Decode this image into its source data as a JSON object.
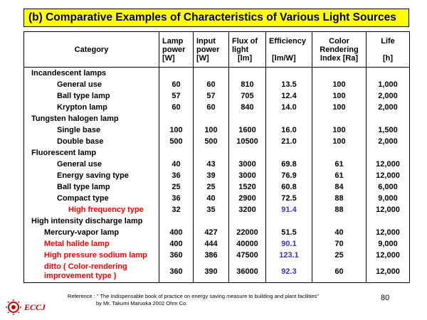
{
  "title": "(b) Comparative Examples of Characteristics of Various Light Sources",
  "headers": {
    "category": "Category",
    "lamp_power": [
      "Lamp",
      "power",
      "[W]"
    ],
    "input_power": [
      "Input",
      "power",
      "[W]"
    ],
    "flux": [
      "Flux of",
      "light",
      "[lm]"
    ],
    "efficiency": [
      "Efficiency",
      "[lm/W]"
    ],
    "color_rendering": [
      "Color",
      "Rendering",
      "Index [Ra]"
    ],
    "life": [
      "Life",
      "[h]"
    ]
  },
  "groups": [
    {
      "name": "Incandescent lamps",
      "rows": [
        {
          "name": "General use",
          "lamp": "60",
          "input": "60",
          "flux": "810",
          "eff": "13.5",
          "cri": "100",
          "life": "1,000"
        },
        {
          "name": "Ball type lamp",
          "lamp": "57",
          "input": "57",
          "flux": "705",
          "eff": "12.4",
          "cri": "100",
          "life": "2,000"
        },
        {
          "name": "Krypton lamp",
          "lamp": "60",
          "input": "60",
          "flux": "840",
          "eff": "14.0",
          "cri": "100",
          "life": "2,000"
        }
      ]
    },
    {
      "name": "Tungsten halogen lamp",
      "rows": [
        {
          "name": "Single base",
          "lamp": "100",
          "input": "100",
          "flux": "1600",
          "eff": "16.0",
          "cri": "100",
          "life": "1,500"
        },
        {
          "name": "Double base",
          "lamp": "500",
          "input": "500",
          "flux": "10500",
          "eff": "21.0",
          "cri": "100",
          "life": "2,000"
        }
      ]
    },
    {
      "name": "Fluorescent lamp",
      "rows": [
        {
          "name": "General use",
          "lamp": "40",
          "input": "43",
          "flux": "3000",
          "eff": "69.8",
          "cri": "61",
          "life": "12,000"
        },
        {
          "name": "Energy saving type",
          "lamp": "36",
          "input": "39",
          "flux": "3000",
          "eff": "76.9",
          "cri": "61",
          "life": "12,000"
        },
        {
          "name": "Ball type lamp",
          "lamp": "25",
          "input": "25",
          "flux": "1520",
          "eff": "60.8",
          "cri": "84",
          "life": "6,000"
        },
        {
          "name": "Compact type",
          "lamp": "36",
          "input": "40",
          "flux": "2900",
          "eff": "72.5",
          "cri": "88",
          "life": "9,000"
        },
        {
          "name": "High frequency type",
          "lamp": "32",
          "input": "35",
          "flux": "3200",
          "eff": "91.4",
          "cri": "88",
          "life": "12,000",
          "highlight": true
        }
      ]
    },
    {
      "name": "High intensity discharge lamp",
      "rows": [
        {
          "name": "Mercury-vapor lamp",
          "lamp": "400",
          "input": "427",
          "flux": "22000",
          "eff": "51.5",
          "cri": "40",
          "life": "12,000"
        },
        {
          "name": "Metal halide lamp",
          "lamp": "400",
          "input": "444",
          "flux": "40000",
          "eff": "90.1",
          "cri": "70",
          "life": "9,000",
          "highlight": true
        },
        {
          "name": "High pressure sodium lamp",
          "lamp": "360",
          "input": "386",
          "flux": "47500",
          "eff": "123.1",
          "cri": "25",
          "life": "12,000",
          "highlight": true
        },
        {
          "name": "ditto ( Color-rendering improvement type )",
          "lamp": "360",
          "input": "390",
          "flux": "36000",
          "eff": "92.3",
          "cri": "60",
          "life": "12,000",
          "highlight": true
        }
      ]
    }
  ],
  "reference_line1": "Reference : \" The Indispensable book of practice on energy saving measure to building and plant facilities\"",
  "reference_line2": "by Mr. Takumi Maruoka 2002 Ohm Co.",
  "page_number": "80",
  "logo_text": "ECCJ",
  "colors": {
    "title_bg": "#ffff00",
    "title_text": "#000066",
    "highlight_name": "#ff0000",
    "highlight_value": "#3333cc",
    "logo": "#cc0000"
  }
}
